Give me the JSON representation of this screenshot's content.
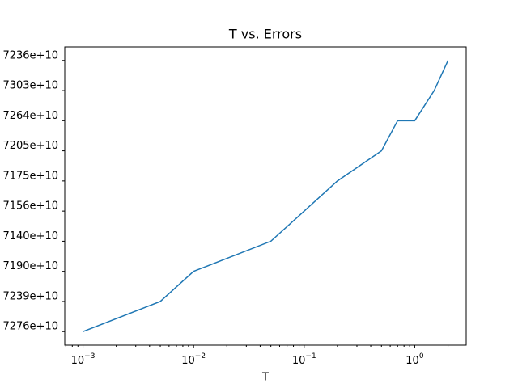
{
  "chart_data": {
    "type": "line",
    "title": "T vs. Errors",
    "x_label": "T",
    "x": [
      0.001,
      0.005,
      0.01,
      0.05,
      0.1,
      0.2,
      0.5,
      0.7,
      1,
      1.5,
      2
    ],
    "series": [
      {
        "color": "#1f77b4",
        "values": [
          0,
          1,
          2,
          3,
          4,
          5,
          6,
          7,
          7,
          8,
          9
        ]
      }
    ],
    "xscale": "log",
    "xlim": [
      0.000684,
      2.92
    ],
    "xticks": [
      {
        "value": 0.001,
        "base": "10",
        "exponent": "−3"
      },
      {
        "value": 0.01,
        "base": "10",
        "exponent": "−2"
      },
      {
        "value": 0.1,
        "base": "10",
        "exponent": "−1"
      },
      {
        "value": 1,
        "base": "10",
        "exponent": "0"
      }
    ],
    "xminorticks": [
      0.0007,
      0.0008,
      0.0009,
      0.002,
      0.003,
      0.004,
      0.005,
      0.006,
      0.007,
      0.008,
      0.009,
      0.02,
      0.03,
      0.04,
      0.05,
      0.06,
      0.07,
      0.08,
      0.09,
      0.2,
      0.3,
      0.4,
      0.5,
      0.6,
      0.7,
      0.8,
      0.9,
      2
    ],
    "ylim": [
      -0.45,
      9.45
    ],
    "yticks": [
      {
        "value": 0,
        "label": "7276e+10"
      },
      {
        "value": 1,
        "label": "7239e+10"
      },
      {
        "value": 2,
        "label": "7190e+10"
      },
      {
        "value": 3,
        "label": "7140e+10"
      },
      {
        "value": 4,
        "label": "7156e+10"
      },
      {
        "value": 5,
        "label": "7175e+10"
      },
      {
        "value": 6,
        "label": "7205e+10"
      },
      {
        "value": 7,
        "label": "7264e+10"
      },
      {
        "value": 8,
        "label": "7303e+10"
      },
      {
        "value": 9,
        "label": "7236e+10"
      }
    ],
    "grid": false
  }
}
